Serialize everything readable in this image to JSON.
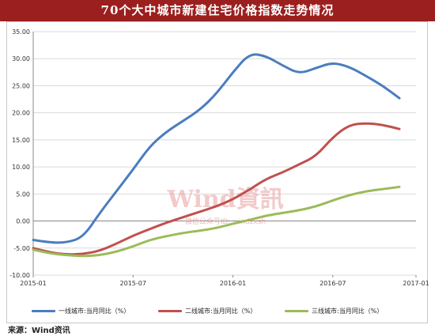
{
  "title": "70个大中城市新建住宅价格指数走势情况",
  "source": "来源：Wind资讯",
  "watermark": {
    "main": "Wind資訊",
    "sub": "微信公众号ID: windzxsh",
    "color": "#e8a0a0"
  },
  "colors": {
    "title_bg": "#9c1f1f",
    "series": [
      "#4a7dbf",
      "#c0504d",
      "#9bbb59"
    ]
  },
  "chart_data": {
    "type": "line",
    "title": "70个大中城市新建住宅价格指数走势情况",
    "xlabel": "",
    "ylabel": "",
    "x_ticks": [
      "2015-01",
      "2015-07",
      "2016-01",
      "2016-07",
      "2017-01"
    ],
    "ylim": [
      -10,
      35
    ],
    "y_ticks": [
      "-10.00",
      "-5.00",
      "0.00",
      "5.00",
      "10.00",
      "15.00",
      "20.00",
      "25.00",
      "30.00",
      "35.00"
    ],
    "grid": "horizontal",
    "legend_position": "bottom",
    "x": [
      "2015-01",
      "2015-02",
      "2015-03",
      "2015-04",
      "2015-05",
      "2015-06",
      "2015-07",
      "2015-08",
      "2015-09",
      "2015-10",
      "2015-11",
      "2015-12",
      "2016-01",
      "2016-02",
      "2016-03",
      "2016-04",
      "2016-05",
      "2016-06",
      "2016-07",
      "2016-08",
      "2016-09",
      "2016-10",
      "2016-11",
      "2016-12"
    ],
    "series": [
      {
        "name": "一线城市:当月同比（%）",
        "values": [
          -3.5,
          -4.0,
          -4.0,
          -3.0,
          1.5,
          5.5,
          9.5,
          13.8,
          16.5,
          18.5,
          20.5,
          23.5,
          27.5,
          31.0,
          30.5,
          28.7,
          27.2,
          28.3,
          29.3,
          28.5,
          26.8,
          25.0,
          22.7,
          null
        ],
        "color": "#4a7dbf"
      },
      {
        "name": "二线城市:当月同比（%）",
        "values": [
          -5.0,
          -5.8,
          -6.2,
          -6.1,
          -5.5,
          -4.2,
          -2.7,
          -1.5,
          -0.3,
          0.7,
          1.7,
          2.7,
          4.0,
          5.8,
          7.8,
          9.0,
          10.5,
          12.0,
          15.5,
          17.8,
          18.1,
          17.8,
          17.0,
          null
        ],
        "color": "#c0504d"
      },
      {
        "name": "三线城市:当月同比（%）",
        "values": [
          -5.3,
          -6.0,
          -6.3,
          -6.5,
          -6.3,
          -5.7,
          -4.7,
          -3.5,
          -2.8,
          -2.2,
          -1.8,
          -1.3,
          -0.5,
          0.2,
          1.0,
          1.5,
          2.0,
          2.7,
          3.8,
          4.8,
          5.5,
          5.9,
          6.3,
          null
        ],
        "color": "#9bbb59"
      }
    ]
  }
}
